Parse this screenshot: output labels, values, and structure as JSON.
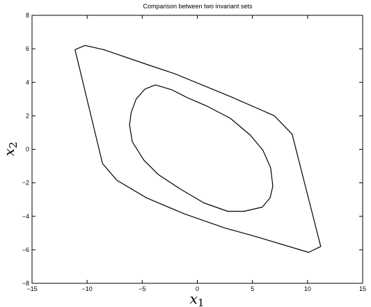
{
  "chart_data": {
    "type": "line",
    "title": "Comparison between two invariant sets",
    "xlabel": {
      "base": "x",
      "sub": "1"
    },
    "ylabel": {
      "base": "x",
      "sub": "2"
    },
    "xlim": [
      -15,
      15
    ],
    "ylim": [
      -8,
      8
    ],
    "xticks": [
      -15,
      -10,
      -5,
      0,
      5,
      10,
      15
    ],
    "yticks": [
      -8,
      -6,
      -4,
      -2,
      0,
      2,
      4,
      6,
      8
    ],
    "xtick_labels": [
      "−15",
      "−10",
      "−5",
      "0",
      "5",
      "10",
      "15"
    ],
    "ytick_labels": [
      "−8",
      "−6",
      "−4",
      "−2",
      "0",
      "2",
      "4",
      "6",
      "8"
    ],
    "grid": false,
    "series": [
      {
        "closed": true,
        "color": "#000000",
        "points": [
          [
            -11.1,
            5.95
          ],
          [
            -10.2,
            6.2
          ],
          [
            -8.5,
            5.95
          ],
          [
            -4.5,
            5.05
          ],
          [
            -2.0,
            4.5
          ],
          [
            3.0,
            3.15
          ],
          [
            7.0,
            2.0
          ],
          [
            8.6,
            0.9
          ],
          [
            11.2,
            -5.8
          ],
          [
            10.1,
            -6.15
          ],
          [
            5.0,
            -5.15
          ],
          [
            2.5,
            -4.7
          ],
          [
            -1.2,
            -3.85
          ],
          [
            -4.6,
            -2.9
          ],
          [
            -7.3,
            -1.85
          ],
          [
            -8.6,
            -0.85
          ]
        ]
      },
      {
        "closed": true,
        "color": "#000000",
        "points": [
          [
            -3.8,
            3.85
          ],
          [
            -2.3,
            3.55
          ],
          [
            -0.8,
            3.05
          ],
          [
            0.8,
            2.6
          ],
          [
            3.0,
            1.85
          ],
          [
            4.8,
            0.85
          ],
          [
            5.95,
            -0.05
          ],
          [
            6.65,
            -1.1
          ],
          [
            6.85,
            -2.2
          ],
          [
            6.6,
            -2.9
          ],
          [
            5.9,
            -3.45
          ],
          [
            4.25,
            -3.7
          ],
          [
            2.75,
            -3.7
          ],
          [
            0.6,
            -3.2
          ],
          [
            -1.6,
            -2.35
          ],
          [
            -3.55,
            -1.5
          ],
          [
            -4.85,
            -0.65
          ],
          [
            -5.9,
            0.45
          ],
          [
            -6.15,
            1.45
          ],
          [
            -6.0,
            2.2
          ],
          [
            -5.55,
            3.0
          ],
          [
            -4.75,
            3.6
          ]
        ]
      }
    ]
  }
}
